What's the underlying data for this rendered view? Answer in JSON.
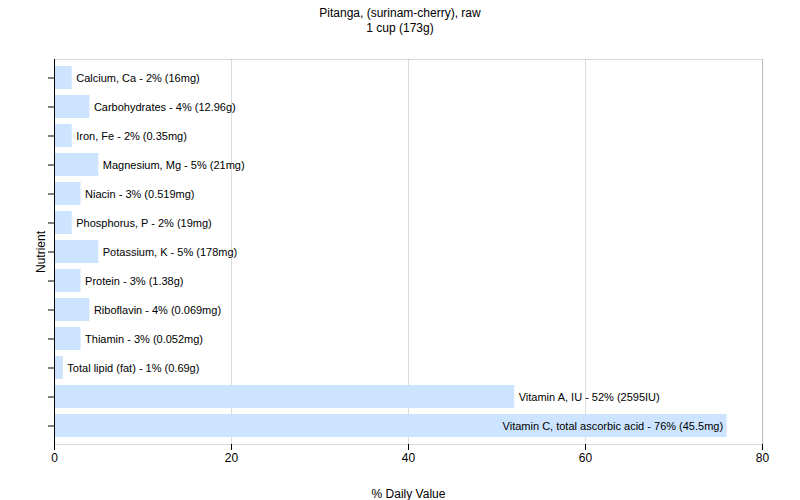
{
  "chart_data": {
    "type": "bar",
    "orientation": "horizontal",
    "title": "Pitanga, (surinam-cherry), raw",
    "subtitle": "1 cup (173g)",
    "x_label": "% Daily Value",
    "y_label": "Nutrient",
    "categories": [
      "Calcium, Ca - 2% (16mg)",
      "Carbohydrates - 4% (12.96g)",
      "Iron, Fe - 2% (0.35mg)",
      "Magnesium, Mg - 5% (21mg)",
      "Niacin - 3% (0.519mg)",
      "Phosphorus, P - 2% (19mg)",
      "Potassium, K - 5% (178mg)",
      "Protein - 3% (1.38g)",
      "Riboflavin - 4% (0.069mg)",
      "Thiamin - 3% (0.052mg)",
      "Total lipid (fat) - 1% (0.69g)",
      "Vitamin A, IU - 52% (2595IU)",
      "Vitamin C, total ascorbic acid - 76% (45.5mg)"
    ],
    "values": [
      2,
      4,
      2,
      5,
      3,
      2,
      5,
      3,
      4,
      3,
      1,
      52,
      76
    ],
    "color": "#cce4ff",
    "xlim": [
      0,
      80
    ],
    "xticks": [
      0,
      20,
      40,
      60,
      80
    ],
    "grid": true,
    "tick_labels": "x"
  }
}
